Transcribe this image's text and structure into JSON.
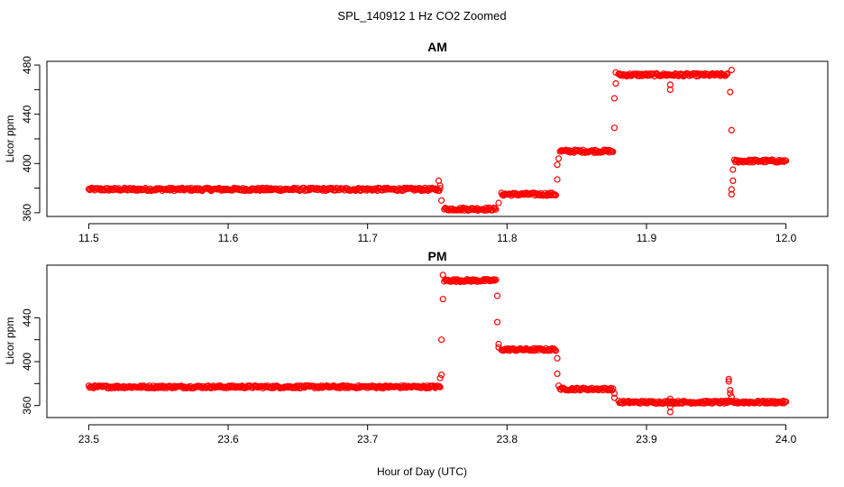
{
  "chart_data": {
    "figure_title": "SPL_140912  1 Hz CO2 Zoomed",
    "shared_xlabel": "Hour of Day (UTC)",
    "marker_color": "#ff0000",
    "panels": [
      {
        "type": "scatter",
        "title": "AM",
        "xlabel": "Hour of Day (UTC)",
        "ylabel": "Licor ppm",
        "xlim": [
          11.47,
          12.03
        ],
        "ylim": [
          357,
          483
        ],
        "xticks": [
          11.5,
          11.6,
          11.7,
          11.8,
          11.9,
          12.0
        ],
        "xtick_labels": [
          "11.5",
          "11.6",
          "11.7",
          "11.8",
          "11.9",
          "12.0"
        ],
        "yticks": [
          360,
          400,
          440,
          480
        ],
        "ytick_labels": [
          "360",
          "400",
          "440",
          "480"
        ],
        "segments": [
          {
            "x_start": 11.5,
            "x_end": 11.752,
            "y": 379
          },
          {
            "x_start": 11.755,
            "x_end": 11.792,
            "y": 363
          },
          {
            "x_start": 11.796,
            "x_end": 11.835,
            "y": 375
          },
          {
            "x_start": 11.838,
            "x_end": 11.876,
            "y": 410
          },
          {
            "x_start": 11.88,
            "x_end": 11.958,
            "y": 472
          },
          {
            "x_start": 11.963,
            "x_end": 12.0,
            "y": 402
          }
        ],
        "outliers": [
          {
            "x": 11.751,
            "y": 386
          },
          {
            "x": 11.752,
            "y": 382
          },
          {
            "x": 11.753,
            "y": 370
          },
          {
            "x": 11.794,
            "y": 368
          },
          {
            "x": 11.836,
            "y": 387
          },
          {
            "x": 11.836,
            "y": 399
          },
          {
            "x": 11.837,
            "y": 404
          },
          {
            "x": 11.877,
            "y": 429
          },
          {
            "x": 11.877,
            "y": 453
          },
          {
            "x": 11.878,
            "y": 465
          },
          {
            "x": 11.878,
            "y": 474
          },
          {
            "x": 11.917,
            "y": 460
          },
          {
            "x": 11.917,
            "y": 464
          },
          {
            "x": 11.96,
            "y": 458
          },
          {
            "x": 11.961,
            "y": 427
          },
          {
            "x": 11.961,
            "y": 476
          },
          {
            "x": 11.962,
            "y": 395
          },
          {
            "x": 11.962,
            "y": 386
          },
          {
            "x": 11.961,
            "y": 379
          },
          {
            "x": 11.961,
            "y": 375
          }
        ]
      },
      {
        "type": "scatter",
        "title": "PM",
        "xlabel": "Hour of Day (UTC)",
        "ylabel": "Licor ppm",
        "xlim": [
          23.47,
          24.03
        ],
        "ylim": [
          349,
          488
        ],
        "xticks": [
          23.5,
          23.6,
          23.7,
          23.8,
          23.9,
          24.0
        ],
        "xtick_labels": [
          "23.5",
          "23.6",
          "23.7",
          "23.8",
          "23.9",
          "24.0"
        ],
        "yticks": [
          360,
          400,
          440
        ],
        "ytick_labels": [
          "360",
          "400",
          "440"
        ],
        "segments": [
          {
            "x_start": 23.5,
            "x_end": 23.752,
            "y": 377
          },
          {
            "x_start": 23.755,
            "x_end": 23.792,
            "y": 474
          },
          {
            "x_start": 23.796,
            "x_end": 23.835,
            "y": 411
          },
          {
            "x_start": 23.838,
            "x_end": 23.876,
            "y": 375
          },
          {
            "x_start": 23.88,
            "x_end": 24.0,
            "y": 363
          }
        ],
        "outliers": [
          {
            "x": 23.752,
            "y": 385
          },
          {
            "x": 23.753,
            "y": 388
          },
          {
            "x": 23.753,
            "y": 420
          },
          {
            "x": 23.754,
            "y": 457
          },
          {
            "x": 23.754,
            "y": 479
          },
          {
            "x": 23.793,
            "y": 460
          },
          {
            "x": 23.793,
            "y": 436
          },
          {
            "x": 23.794,
            "y": 416
          },
          {
            "x": 23.794,
            "y": 413
          },
          {
            "x": 23.836,
            "y": 403
          },
          {
            "x": 23.836,
            "y": 389
          },
          {
            "x": 23.837,
            "y": 378
          },
          {
            "x": 23.877,
            "y": 371
          },
          {
            "x": 23.877,
            "y": 367
          },
          {
            "x": 23.917,
            "y": 366
          },
          {
            "x": 23.917,
            "y": 359
          },
          {
            "x": 23.917,
            "y": 354
          },
          {
            "x": 23.959,
            "y": 384
          },
          {
            "x": 23.959,
            "y": 382
          },
          {
            "x": 23.96,
            "y": 374
          },
          {
            "x": 23.96,
            "y": 371
          },
          {
            "x": 23.961,
            "y": 368
          }
        ]
      }
    ]
  }
}
